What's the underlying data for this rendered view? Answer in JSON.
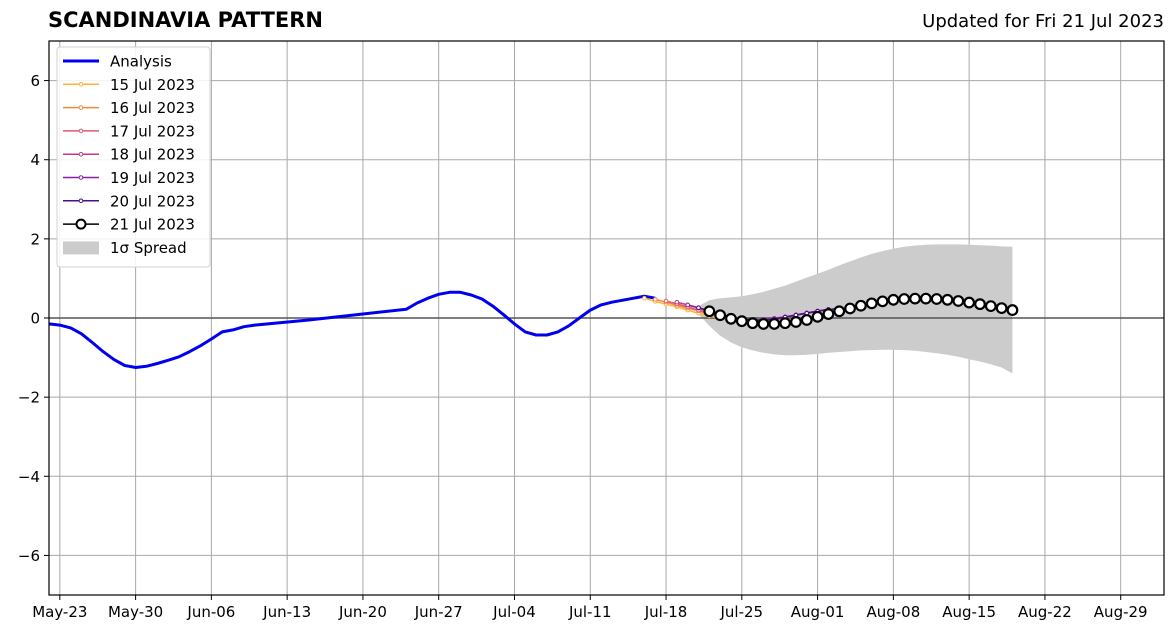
{
  "chart_data": {
    "type": "line",
    "title": "SCANDINAVIA PATTERN",
    "subtitle": "Updated for Fri 21 Jul 2023",
    "xlabel": "",
    "ylabel": "",
    "ylim": [
      -7,
      7
    ],
    "xlim": [
      "2023-05-22",
      "2023-09-02"
    ],
    "grid": true,
    "legend_position": "top-left",
    "y_ticks": [
      6,
      4,
      2,
      0,
      -2,
      -4,
      -6
    ],
    "y_tick_labels": [
      "6",
      "4",
      "2",
      "0",
      "−2",
      "−4",
      "−6"
    ],
    "x_ticks": [
      "2023-05-23",
      "2023-05-30",
      "2023-06-06",
      "2023-06-13",
      "2023-06-20",
      "2023-06-27",
      "2023-07-04",
      "2023-07-11",
      "2023-07-18",
      "2023-07-25",
      "2023-08-01",
      "2023-08-08",
      "2023-08-15",
      "2023-08-22",
      "2023-08-29"
    ],
    "x_tick_labels": [
      "May-23",
      "May-30",
      "Jun-06",
      "Jun-13",
      "Jun-20",
      "Jun-27",
      "Jul-04",
      "Jul-11",
      "Jul-18",
      "Jul-25",
      "Aug-01",
      "Aug-08",
      "Aug-15",
      "Aug-22",
      "Aug-29"
    ],
    "series": [
      {
        "name": "Analysis",
        "color": "#0000ee",
        "style": "line",
        "x": [
          "2023-05-22",
          "2023-05-23",
          "2023-05-24",
          "2023-05-25",
          "2023-05-26",
          "2023-05-27",
          "2023-05-28",
          "2023-05-29",
          "2023-05-30",
          "2023-05-31",
          "2023-06-01",
          "2023-06-02",
          "2023-06-03",
          "2023-06-04",
          "2023-06-05",
          "2023-06-06",
          "2023-06-07",
          "2023-06-08",
          "2023-06-09",
          "2023-06-10",
          "2023-06-15",
          "2023-06-20",
          "2023-06-24",
          "2023-06-25",
          "2023-06-26",
          "2023-06-27",
          "2023-06-28",
          "2023-06-29",
          "2023-06-30",
          "2023-07-01",
          "2023-07-02",
          "2023-07-03",
          "2023-07-04",
          "2023-07-05",
          "2023-07-06",
          "2023-07-07",
          "2023-07-08",
          "2023-07-09",
          "2023-07-10",
          "2023-07-11",
          "2023-07-12",
          "2023-07-13",
          "2023-07-14",
          "2023-07-15",
          "2023-07-16",
          "2023-07-17"
        ],
        "values": [
          -0.15,
          -0.18,
          -0.25,
          -0.4,
          -0.62,
          -0.85,
          -1.05,
          -1.2,
          -1.25,
          -1.22,
          -1.15,
          -1.07,
          -0.98,
          -0.85,
          -0.7,
          -0.53,
          -0.35,
          -0.3,
          -0.22,
          -0.18,
          -0.05,
          0.1,
          0.22,
          0.38,
          0.5,
          0.6,
          0.65,
          0.65,
          0.58,
          0.48,
          0.3,
          0.08,
          -0.15,
          -0.35,
          -0.43,
          -0.43,
          -0.35,
          -0.2,
          0.0,
          0.2,
          0.33,
          0.4,
          0.45,
          0.5,
          0.55,
          0.5
        ]
      },
      {
        "name": "15 Jul 2023",
        "color": "#ffb03b",
        "style": "small-markers",
        "x": [
          "2023-07-16",
          "2023-07-17",
          "2023-07-18",
          "2023-07-19",
          "2023-07-20",
          "2023-07-21",
          "2023-07-22",
          "2023-07-23",
          "2023-07-24",
          "2023-07-25",
          "2023-07-26",
          "2023-07-27",
          "2023-07-28"
        ],
        "values": [
          0.5,
          0.42,
          0.35,
          0.28,
          0.2,
          0.12,
          0.05,
          -0.02,
          -0.08,
          -0.12,
          -0.12,
          -0.1,
          -0.05
        ]
      },
      {
        "name": "16 Jul 2023",
        "color": "#f08a3c",
        "style": "small-markers",
        "x": [
          "2023-07-17",
          "2023-07-18",
          "2023-07-19",
          "2023-07-20",
          "2023-07-21",
          "2023-07-22",
          "2023-07-23",
          "2023-07-24",
          "2023-07-25",
          "2023-07-26",
          "2023-07-27",
          "2023-07-28",
          "2023-07-29"
        ],
        "values": [
          0.47,
          0.4,
          0.32,
          0.25,
          0.18,
          0.1,
          0.03,
          -0.04,
          -0.1,
          -0.12,
          -0.1,
          -0.06,
          0.0
        ]
      },
      {
        "name": "17 Jul 2023",
        "color": "#e05a6e",
        "style": "small-markers",
        "x": [
          "2023-07-18",
          "2023-07-19",
          "2023-07-20",
          "2023-07-21",
          "2023-07-22",
          "2023-07-23",
          "2023-07-24",
          "2023-07-25",
          "2023-07-26",
          "2023-07-27",
          "2023-07-28",
          "2023-07-29",
          "2023-07-30"
        ],
        "values": [
          0.43,
          0.36,
          0.28,
          0.2,
          0.13,
          0.06,
          -0.01,
          -0.06,
          -0.08,
          -0.07,
          -0.04,
          0.01,
          0.06
        ]
      },
      {
        "name": "18 Jul 2023",
        "color": "#c0398a",
        "style": "small-markers",
        "x": [
          "2023-07-19",
          "2023-07-20",
          "2023-07-21",
          "2023-07-22",
          "2023-07-23",
          "2023-07-24",
          "2023-07-25",
          "2023-07-26",
          "2023-07-27",
          "2023-07-28",
          "2023-07-29",
          "2023-07-30",
          "2023-07-31",
          "2023-08-01"
        ],
        "values": [
          0.4,
          0.33,
          0.25,
          0.17,
          0.1,
          0.03,
          -0.02,
          -0.05,
          -0.05,
          -0.03,
          0.02,
          0.07,
          0.12,
          0.17
        ]
      },
      {
        "name": "19 Jul 2023",
        "color": "#8b1fa8",
        "style": "small-markers",
        "x": [
          "2023-07-20",
          "2023-07-21",
          "2023-07-22",
          "2023-07-23",
          "2023-07-24",
          "2023-07-25",
          "2023-07-26",
          "2023-07-27",
          "2023-07-28",
          "2023-07-29",
          "2023-07-30",
          "2023-07-31",
          "2023-08-01",
          "2023-08-02"
        ],
        "values": [
          0.33,
          0.26,
          0.18,
          0.1,
          0.03,
          -0.02,
          -0.05,
          -0.04,
          -0.01,
          0.03,
          0.08,
          0.13,
          0.18,
          0.22
        ]
      },
      {
        "name": "20 Jul 2023",
        "color": "#4a0e8f",
        "style": "small-markers",
        "x": [
          "2023-07-21",
          "2023-07-22",
          "2023-07-23",
          "2023-07-24",
          "2023-07-25",
          "2023-07-26",
          "2023-07-27",
          "2023-07-28",
          "2023-07-29",
          "2023-07-30",
          "2023-07-31",
          "2023-08-01",
          "2023-08-02",
          "2023-08-03"
        ],
        "values": [
          0.26,
          0.18,
          0.1,
          0.02,
          -0.04,
          -0.06,
          -0.06,
          -0.03,
          0.02,
          0.07,
          0.12,
          0.17,
          0.21,
          0.25
        ]
      },
      {
        "name": "21 Jul 2023",
        "color": "#000000",
        "style": "big-markers",
        "x": [
          "2023-07-22",
          "2023-07-23",
          "2023-07-24",
          "2023-07-25",
          "2023-07-26",
          "2023-07-27",
          "2023-07-28",
          "2023-07-29",
          "2023-07-30",
          "2023-07-31",
          "2023-08-01",
          "2023-08-02",
          "2023-08-03",
          "2023-08-04",
          "2023-08-05",
          "2023-08-06",
          "2023-08-07",
          "2023-08-08",
          "2023-08-09",
          "2023-08-10",
          "2023-08-11",
          "2023-08-12",
          "2023-08-13",
          "2023-08-14",
          "2023-08-15",
          "2023-08-16",
          "2023-08-17",
          "2023-08-18",
          "2023-08-19"
        ],
        "values": [
          0.17,
          0.07,
          -0.02,
          -0.08,
          -0.13,
          -0.15,
          -0.15,
          -0.13,
          -0.1,
          -0.05,
          0.03,
          0.1,
          0.17,
          0.24,
          0.31,
          0.37,
          0.42,
          0.46,
          0.48,
          0.49,
          0.49,
          0.48,
          0.46,
          0.43,
          0.39,
          0.35,
          0.3,
          0.25,
          0.2
        ]
      }
    ],
    "spread": {
      "name": "1σ Spread",
      "color": "#cccccc",
      "x": [
        "2023-07-21",
        "2023-07-22",
        "2023-07-23",
        "2023-07-24",
        "2023-07-25",
        "2023-07-26",
        "2023-07-27",
        "2023-07-28",
        "2023-07-29",
        "2023-07-30",
        "2023-07-31",
        "2023-08-01",
        "2023-08-02",
        "2023-08-03",
        "2023-08-04",
        "2023-08-05",
        "2023-08-06",
        "2023-08-07",
        "2023-08-08",
        "2023-08-09",
        "2023-08-10",
        "2023-08-11",
        "2023-08-12",
        "2023-08-13",
        "2023-08-14",
        "2023-08-15",
        "2023-08-16",
        "2023-08-17",
        "2023-08-18",
        "2023-08-19"
      ],
      "upper": [
        0.3,
        0.45,
        0.5,
        0.52,
        0.55,
        0.6,
        0.66,
        0.74,
        0.82,
        0.92,
        1.02,
        1.12,
        1.22,
        1.33,
        1.43,
        1.53,
        1.62,
        1.69,
        1.75,
        1.8,
        1.83,
        1.85,
        1.86,
        1.86,
        1.86,
        1.85,
        1.84,
        1.83,
        1.81,
        1.8
      ],
      "lower": [
        0.1,
        -0.2,
        -0.45,
        -0.62,
        -0.74,
        -0.82,
        -0.88,
        -0.92,
        -0.94,
        -0.94,
        -0.93,
        -0.91,
        -0.88,
        -0.86,
        -0.84,
        -0.82,
        -0.81,
        -0.8,
        -0.8,
        -0.81,
        -0.83,
        -0.86,
        -0.89,
        -0.93,
        -0.98,
        -1.04,
        -1.1,
        -1.17,
        -1.25,
        -1.4
      ]
    }
  }
}
